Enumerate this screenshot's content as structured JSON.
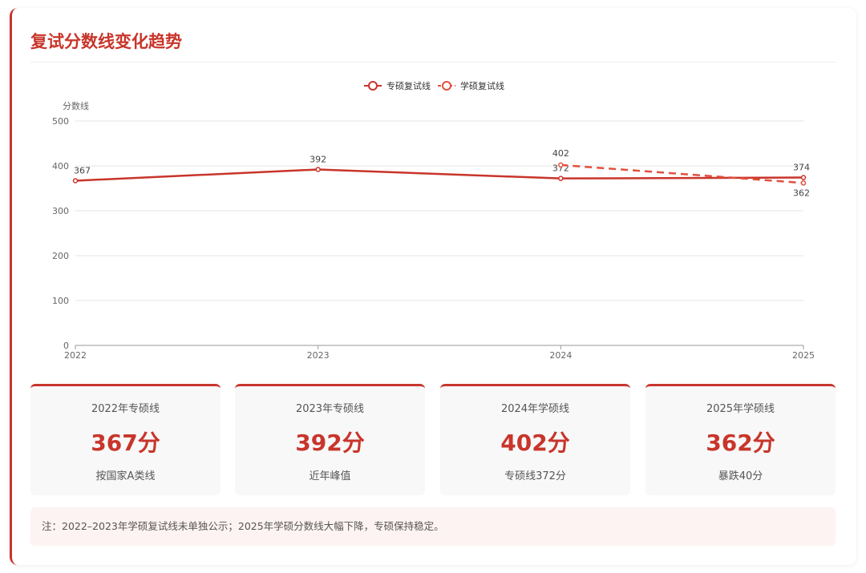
{
  "title": "复试分数线变化趋势",
  "chart_data": {
    "type": "line",
    "categories": [
      "2022",
      "2023",
      "2024",
      "2025"
    ],
    "ylabel": "分数线",
    "ylim": [
      0,
      500
    ],
    "yticks": [
      0,
      100,
      200,
      300,
      400,
      500
    ],
    "grid": true,
    "legend_position": "top-center",
    "series": [
      {
        "name": "专硕复试线",
        "values": [
          367,
          392,
          372,
          374
        ],
        "color": "#c8352b",
        "dashed": false
      },
      {
        "name": "学硕复试线",
        "values": [
          null,
          null,
          402,
          362
        ],
        "color": "#e0503f",
        "dashed": true
      }
    ]
  },
  "stats": [
    {
      "label": "2022年专硕线",
      "value": "367分",
      "sub": "按国家A类线"
    },
    {
      "label": "2023年专硕线",
      "value": "392分",
      "sub": "近年峰值"
    },
    {
      "label": "2024年学硕线",
      "value": "402分",
      "sub": "专硕线372分"
    },
    {
      "label": "2025年学硕线",
      "value": "362分",
      "sub": "暴跌40分"
    }
  ],
  "note": "注：2022–2023年学硕复试线未单独公示；2025年学硕分数线大幅下降，专硕保持稳定。"
}
